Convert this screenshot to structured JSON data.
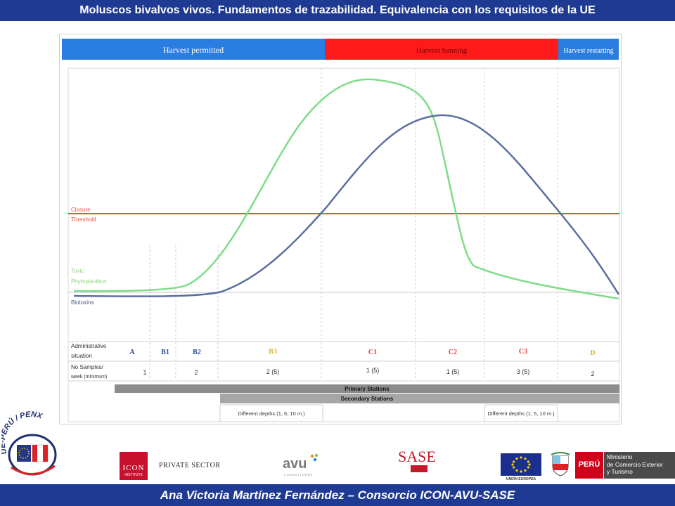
{
  "header": {
    "title": "Moluscos bivalvos vivos. Fundamentos de trazabilidad. Equivalencia con los requisitos de la UE"
  },
  "footer": {
    "credit": "Ana Victoria Martínez Fernández – Consorcio ICON-AVU-SASE"
  },
  "diagram": {
    "phases": [
      "Harvest permitted",
      "Harvest banning",
      "Harvest restarting"
    ],
    "curve_labels": {
      "closure": [
        "Closure",
        "Threshold"
      ],
      "phyto": [
        "Toxic",
        "Phytoplankton"
      ],
      "biotoxins": "Biotoxins"
    },
    "table": {
      "row1_label": [
        "Administrative",
        "situation"
      ],
      "row2_label": [
        "No Samples/",
        "week (minimum)"
      ],
      "situations": [
        "A",
        "B1",
        "B2",
        "B3",
        "C1",
        "C2",
        "C3",
        "D"
      ],
      "samples": [
        "1",
        "2",
        "2 (5)",
        "1 (5)",
        "1 (5)",
        "3 (5)",
        "2"
      ],
      "primary_stations": "Primary Stations",
      "secondary_stations": "Secondary Stations",
      "depths_left": "Different depths (1, 5, 10 m.)",
      "depths_right": "Different depths (1, 5, 10 m.)"
    },
    "colors": {
      "permitted": "#2a7de1",
      "banning": "#ff1a1a",
      "threshold": "#e8503a",
      "phyto": "#7fdc8a",
      "biotoxins": "#5b6fa0"
    }
  },
  "logos": {
    "ue_peru": "UE-PERÚ / PENX",
    "icon_main": "ICON",
    "icon_sub": "INSTITUTE",
    "private_sector": "PRIVATE SECTOR",
    "avu": "avu",
    "avu_sub": "CONSULTORES",
    "sase": "SASE",
    "union_europea": "UNIÓN EUROPEA",
    "peru": "PERÚ",
    "ministerio": [
      "Ministerio",
      "de Comercio Exterior",
      "y Turismo"
    ]
  }
}
